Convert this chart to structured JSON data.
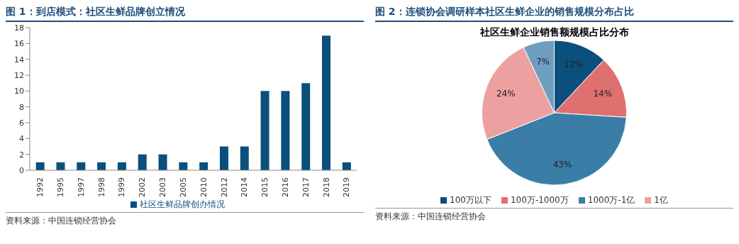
{
  "chart_data": [
    {
      "type": "bar",
      "title": "图 1：到店模式：社区生鲜品牌创立情况",
      "categories": [
        "1992",
        "1995",
        "1997",
        "1998",
        "1999",
        "2002",
        "2003",
        "2005",
        "2010",
        "2012",
        "2014",
        "2015",
        "2016",
        "2017",
        "2018",
        "2019"
      ],
      "series": [
        {
          "name": "社区生鲜品牌创办情况",
          "color": "#0b4f7c",
          "values": [
            1,
            1,
            1,
            1,
            1,
            2,
            2,
            1,
            1,
            3,
            3,
            10,
            10,
            11,
            17,
            1
          ]
        }
      ],
      "ylim": [
        0,
        18
      ],
      "yticks": [
        0,
        2,
        4,
        6,
        8,
        10,
        12,
        14,
        16,
        18
      ],
      "grid": false,
      "legend": "bottom",
      "annotations": [
        "资料来源：中国连锁经营协会"
      ]
    },
    {
      "type": "pie",
      "title": "图 2：连锁协会调研样本社区生鲜企业的销售规模分布占比",
      "subtitle": "社区生鲜企业销售额规模占比分布",
      "categories": [
        "100万以下",
        "100万-1000万",
        "1000万-1亿",
        "1亿",
        null
      ],
      "values": [
        12,
        14,
        43,
        24,
        7
      ],
      "colors": [
        "#0b4f7c",
        "#e07070",
        "#3a7ea8",
        "#eca0a0",
        "#6f9fc0"
      ],
      "value_labels": [
        "12%",
        "14%",
        "43%",
        "24%",
        "7%"
      ],
      "legend": "bottom",
      "annotations": [
        "资料来源：中国连锁经营协会"
      ]
    }
  ]
}
